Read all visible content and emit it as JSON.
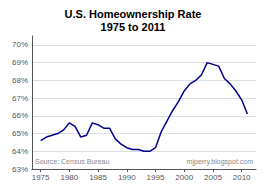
{
  "chart_data": {
    "type": "line",
    "title": "U.S. Homeownership Rate\n1975 to 2011",
    "annotations": [
      "Source: Census Bureau",
      "mjperry.blogspot.com"
    ],
    "x": [
      1975,
      1976,
      1977,
      1978,
      1979,
      1980,
      1981,
      1982,
      1983,
      1984,
      1985,
      1986,
      1987,
      1988,
      1989,
      1990,
      1991,
      1992,
      1993,
      1994,
      1995,
      1996,
      1997,
      1998,
      1999,
      2000,
      2001,
      2002,
      2003,
      2004,
      2005,
      2006,
      2007,
      2008,
      2009,
      2010,
      2011
    ],
    "values": [
      64.6,
      64.8,
      64.9,
      65.0,
      65.2,
      65.6,
      65.4,
      64.8,
      64.9,
      65.6,
      65.5,
      65.3,
      65.3,
      64.7,
      64.4,
      64.2,
      64.1,
      64.1,
      64.0,
      64.0,
      64.2,
      65.1,
      65.7,
      66.3,
      66.8,
      67.4,
      67.8,
      68.0,
      68.3,
      69.0,
      68.9,
      68.8,
      68.1,
      67.8,
      67.4,
      66.9,
      66.1
    ],
    "color": "#00008B",
    "xlim": [
      1973.5,
      2012.5
    ],
    "xticks": [
      1975,
      1980,
      1985,
      1990,
      1995,
      2000,
      2005,
      2010
    ],
    "ylim": [
      63.0,
      70.5
    ],
    "yticks": [
      {
        "value": 63,
        "label": "63%"
      },
      {
        "value": 64,
        "label": "64%"
      },
      {
        "value": 65,
        "label": "65%"
      },
      {
        "value": 66,
        "label": "66%"
      },
      {
        "value": 67,
        "label": "67%"
      },
      {
        "value": 68,
        "label": "68%"
      },
      {
        "value": 69,
        "label": "69%"
      },
      {
        "value": 70,
        "label": "70%"
      }
    ],
    "grid": true
  }
}
